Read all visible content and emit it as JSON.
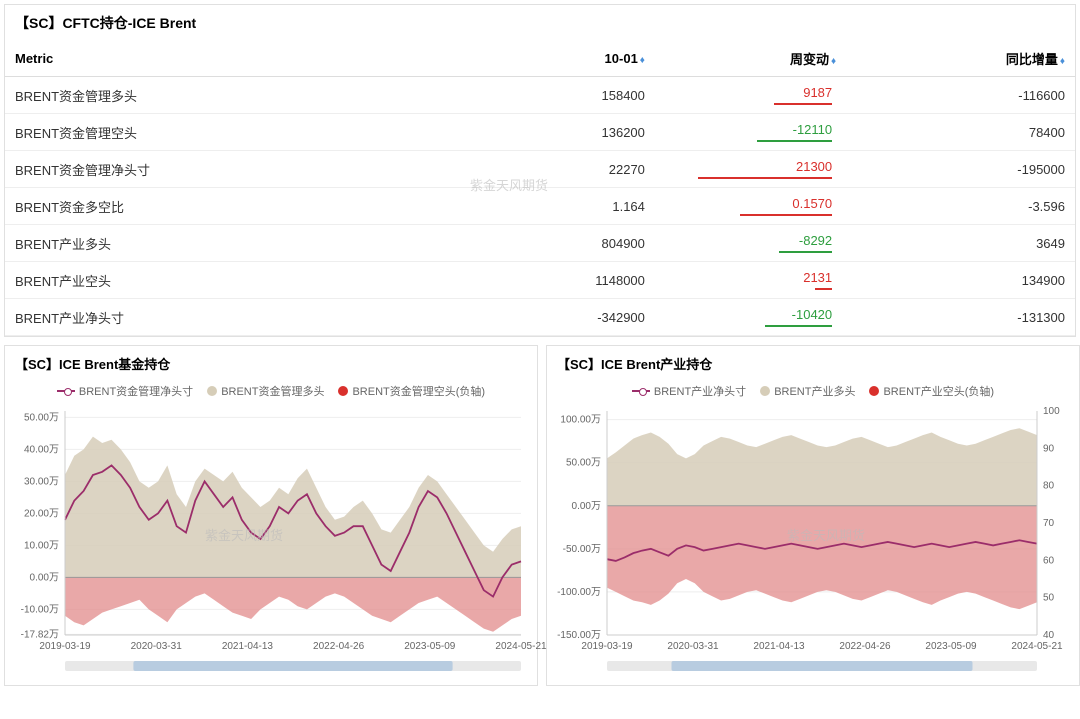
{
  "watermark": "紫金天风期货",
  "table": {
    "title": "【SC】CFTC持仓-ICE Brent",
    "columns": [
      "Metric",
      "10-01",
      "周变动",
      "同比增量"
    ],
    "rows": [
      {
        "metric": "BRENT资金管理多头",
        "v1": "158400",
        "chg": "9187",
        "chg_dir": "pos",
        "bar_pct": 35,
        "yoy": "-116600"
      },
      {
        "metric": "BRENT资金管理空头",
        "v1": "136200",
        "chg": "-12110",
        "chg_dir": "neg",
        "bar_pct": 45,
        "yoy": "78400"
      },
      {
        "metric": "BRENT资金管理净头寸",
        "v1": "22270",
        "chg": "21300",
        "chg_dir": "pos",
        "bar_pct": 80,
        "yoy": "-195000"
      },
      {
        "metric": "BRENT资金多空比",
        "v1": "1.164",
        "chg": "0.1570",
        "chg_dir": "pos",
        "bar_pct": 55,
        "yoy": "-3.596"
      },
      {
        "metric": "BRENT产业多头",
        "v1": "804900",
        "chg": "-8292",
        "chg_dir": "neg",
        "bar_pct": 32,
        "yoy": "3649"
      },
      {
        "metric": "BRENT产业空头",
        "v1": "1148000",
        "chg": "2131",
        "chg_dir": "pos",
        "bar_pct": 10,
        "yoy": "134900"
      },
      {
        "metric": "BRENT产业净头寸",
        "v1": "-342900",
        "chg": "-10420",
        "chg_dir": "neg",
        "bar_pct": 40,
        "yoy": "-131300"
      }
    ]
  },
  "colors": {
    "line_purple": "#9b2d6a",
    "area_beige": "#d6cdb8",
    "area_red": "#e28b8b",
    "marker_red": "#d9302c",
    "grid": "#eeeeee",
    "axis": "#cccccc",
    "bg": "#ffffff"
  },
  "chart1": {
    "title": "【SC】ICE Brent基金持仓",
    "legend": [
      {
        "label": "BRENT资金管理净头寸",
        "type": "line",
        "color": "#9b2d6a"
      },
      {
        "label": "BRENT资金管理多头",
        "type": "dot",
        "color": "#d6cdb8"
      },
      {
        "label": "BRENT资金管理空头(负轴)",
        "type": "dot",
        "color": "#d9302c"
      }
    ],
    "x_labels": [
      "2019-03-19",
      "2020-03-31",
      "2021-04-13",
      "2022-04-26",
      "2023-05-09",
      "2024-05-21"
    ],
    "y_ticks": [
      -17.82,
      -10,
      0,
      10,
      20,
      30,
      40,
      50
    ],
    "y_tick_labels": [
      "-17.82万",
      "-10.00万",
      "0.00万",
      "10.00万",
      "20.00万",
      "30.00万",
      "40.00万",
      "50.00万"
    ],
    "ylim": [
      -18,
      52
    ],
    "beige_area": [
      32,
      38,
      40,
      44,
      42,
      43,
      40,
      36,
      30,
      28,
      30,
      35,
      26,
      22,
      30,
      34,
      32,
      30,
      33,
      28,
      25,
      22,
      24,
      28,
      26,
      31,
      34,
      28,
      22,
      18,
      19,
      22,
      24,
      20,
      15,
      14,
      18,
      22,
      28,
      32,
      30,
      26,
      22,
      18,
      14,
      10,
      8,
      12,
      15,
      16
    ],
    "red_area": [
      -12,
      -14,
      -15,
      -13,
      -11,
      -10,
      -9,
      -8,
      -7,
      -10,
      -12,
      -14,
      -10,
      -8,
      -6,
      -5,
      -7,
      -9,
      -11,
      -12,
      -13,
      -10,
      -8,
      -6,
      -7,
      -9,
      -10,
      -8,
      -6,
      -5,
      -6,
      -8,
      -10,
      -12,
      -13,
      -14,
      -12,
      -10,
      -8,
      -7,
      -6,
      -8,
      -10,
      -12,
      -14,
      -16,
      -17,
      -15,
      -13,
      -12
    ],
    "line": [
      18,
      24,
      27,
      32,
      33,
      35,
      32,
      28,
      22,
      18,
      20,
      24,
      16,
      14,
      24,
      30,
      26,
      22,
      25,
      18,
      14,
      12,
      16,
      22,
      20,
      24,
      26,
      20,
      16,
      13,
      14,
      16,
      16,
      10,
      4,
      2,
      8,
      14,
      22,
      27,
      25,
      20,
      14,
      8,
      2,
      -4,
      -6,
      0,
      4,
      5
    ]
  },
  "chart2": {
    "title": "【SC】ICE Brent产业持仓",
    "legend": [
      {
        "label": "BRENT产业净头寸",
        "type": "line",
        "color": "#9b2d6a"
      },
      {
        "label": "BRENT产业多头",
        "type": "dot",
        "color": "#d6cdb8"
      },
      {
        "label": "BRENT产业空头(负轴)",
        "type": "dot",
        "color": "#d9302c"
      }
    ],
    "x_labels": [
      "2019-03-19",
      "2020-03-31",
      "2021-04-13",
      "2022-04-26",
      "2023-05-09",
      "2024-05-21"
    ],
    "y_ticks": [
      -150,
      -100,
      -50,
      0,
      50,
      100
    ],
    "y_tick_labels": [
      "-150.00万",
      "-100.00万",
      "-50.00万",
      "0.00万",
      "50.00万",
      "100.00万"
    ],
    "ylim": [
      -150,
      110
    ],
    "y2_ticks": [
      40,
      50,
      60,
      70,
      80,
      90,
      100
    ],
    "y2_tick_labels": [
      "40",
      "50",
      "60",
      "70",
      "80",
      "90",
      "100"
    ],
    "beige_area": [
      55,
      62,
      70,
      78,
      82,
      85,
      80,
      72,
      60,
      55,
      60,
      70,
      75,
      80,
      78,
      74,
      70,
      68,
      72,
      76,
      80,
      82,
      78,
      74,
      70,
      68,
      70,
      74,
      78,
      80,
      76,
      72,
      68,
      70,
      74,
      78,
      82,
      85,
      80,
      76,
      72,
      70,
      72,
      76,
      80,
      84,
      88,
      90,
      86,
      82
    ],
    "red_area": [
      -95,
      -100,
      -105,
      -110,
      -112,
      -115,
      -110,
      -102,
      -90,
      -85,
      -90,
      -100,
      -105,
      -110,
      -108,
      -104,
      -100,
      -98,
      -102,
      -106,
      -110,
      -112,
      -108,
      -104,
      -100,
      -98,
      -100,
      -104,
      -108,
      -110,
      -106,
      -102,
      -98,
      -100,
      -104,
      -108,
      -112,
      -115,
      -110,
      -106,
      -102,
      -100,
      -102,
      -106,
      -110,
      -114,
      -118,
      -120,
      -116,
      -112
    ],
    "line": [
      -62,
      -64,
      -60,
      -55,
      -52,
      -50,
      -54,
      -58,
      -50,
      -46,
      -48,
      -52,
      -50,
      -48,
      -46,
      -44,
      -46,
      -48,
      -50,
      -48,
      -46,
      -44,
      -46,
      -48,
      -50,
      -48,
      -46,
      -44,
      -46,
      -48,
      -46,
      -44,
      -42,
      -44,
      -46,
      -48,
      -46,
      -44,
      -46,
      -48,
      -46,
      -44,
      -42,
      -44,
      -46,
      -44,
      -42,
      -40,
      -42,
      -44
    ]
  }
}
